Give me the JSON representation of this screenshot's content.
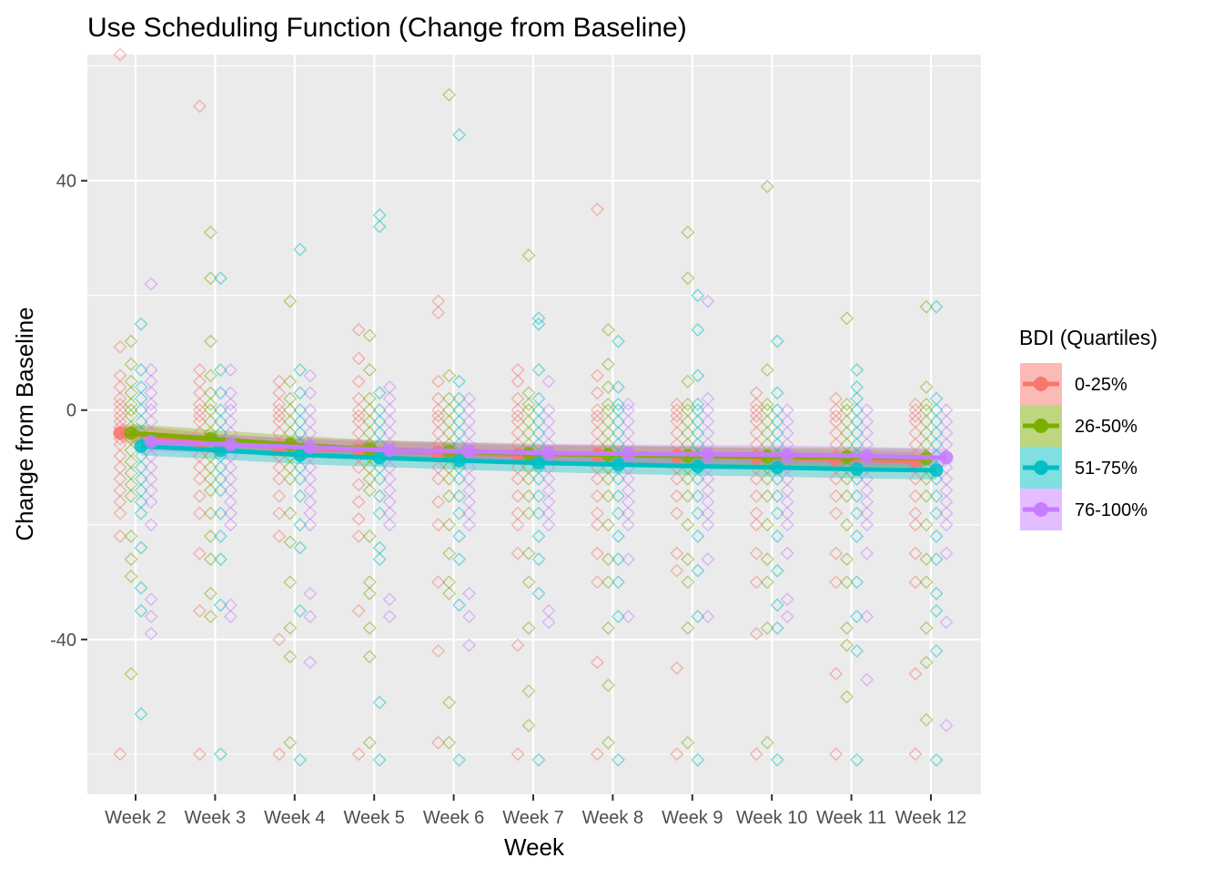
{
  "chart_data": {
    "type": "scatter",
    "title": "Use Scheduling Function (Change from Baseline)",
    "xlabel": "Week",
    "ylabel": "Change from Baseline",
    "categories": [
      "Week 2",
      "Week 3",
      "Week 4",
      "Week 5",
      "Week 6",
      "Week 7",
      "Week 8",
      "Week 9",
      "Week 10",
      "Week 11",
      "Week 12"
    ],
    "ylim": [
      -67,
      62
    ],
    "y_ticks": [
      -40,
      0,
      40
    ],
    "grid": true,
    "legend": {
      "title": "BDI (Quartiles)",
      "placement": "right",
      "entries": [
        "0-25%",
        "26-50%",
        "51-75%",
        "76-100%"
      ]
    },
    "series": [
      {
        "name": "0-25%",
        "color": "#F8766D",
        "trend": [
          -4.0,
          -5.5,
          -6.5,
          -7.0,
          -7.4,
          -7.8,
          -7.8,
          -8.0,
          -8.3,
          -8.6,
          -8.9
        ],
        "points": [
          [
            62,
            11,
            6,
            4,
            2,
            1,
            0,
            -1,
            -2,
            -3,
            -4,
            -5,
            -6,
            -8,
            -10,
            -12,
            -14,
            -16,
            -18,
            -22,
            -60
          ],
          [
            53,
            7,
            5,
            3,
            1,
            0,
            -1,
            -2,
            -4,
            -6,
            -8,
            -10,
            -12,
            -15,
            -18,
            -25,
            -35,
            -60
          ],
          [
            5,
            3,
            1,
            0,
            -1,
            -2,
            -4,
            -6,
            -8,
            -10,
            -12,
            -15,
            -18,
            -22,
            -40,
            -60
          ],
          [
            14,
            9,
            5,
            2,
            0,
            -1,
            -2,
            -4,
            -6,
            -8,
            -10,
            -13,
            -16,
            -19,
            -22,
            -35,
            -60
          ],
          [
            19,
            17,
            5,
            2,
            0,
            -1,
            -2,
            -4,
            -6,
            -8,
            -10,
            -12,
            -16,
            -20,
            -30,
            -42,
            -58
          ],
          [
            7,
            5,
            2,
            0,
            -1,
            -2,
            -4,
            -6,
            -8,
            -10,
            -12,
            -15,
            -18,
            -20,
            -25,
            -41,
            -60
          ],
          [
            35,
            6,
            3,
            0,
            -1,
            -2,
            -4,
            -6,
            -8,
            -10,
            -12,
            -15,
            -18,
            -20,
            -25,
            -30,
            -44,
            -60
          ],
          [
            1,
            0,
            -1,
            -2,
            -4,
            -6,
            -8,
            -10,
            -12,
            -15,
            -18,
            -25,
            -28,
            -45,
            -60
          ],
          [
            3,
            1,
            0,
            -1,
            -2,
            -4,
            -6,
            -8,
            -10,
            -12,
            -15,
            -18,
            -20,
            -25,
            -30,
            -39,
            -60
          ],
          [
            2,
            0,
            -1,
            -2,
            -4,
            -6,
            -8,
            -10,
            -12,
            -15,
            -18,
            -25,
            -30,
            -46,
            -60
          ],
          [
            1,
            0,
            -1,
            -2,
            -4,
            -6,
            -8,
            -10,
            -12,
            -15,
            -18,
            -20,
            -25,
            -30,
            -46,
            -60
          ]
        ]
      },
      {
        "name": "26-50%",
        "color": "#7CAE00",
        "trend": [
          -4.0,
          -5.0,
          -6.0,
          -6.8,
          -7.2,
          -7.6,
          -7.8,
          -8.0,
          -8.1,
          -8.2,
          -8.4
        ],
        "points": [
          [
            12,
            8,
            5,
            3,
            1,
            0,
            -1,
            -3,
            -5,
            -7,
            -9,
            -11,
            -13,
            -15,
            -22,
            -26,
            -29,
            -46
          ],
          [
            31,
            23,
            12,
            6,
            3,
            1,
            0,
            -2,
            -4,
            -6,
            -8,
            -10,
            -12,
            -14,
            -18,
            -22,
            -26,
            -32,
            -36
          ],
          [
            19,
            5,
            2,
            0,
            -2,
            -4,
            -6,
            -8,
            -10,
            -12,
            -18,
            -23,
            -30,
            -38,
            -43,
            -58
          ],
          [
            13,
            7,
            2,
            0,
            -2,
            -4,
            -6,
            -8,
            -10,
            -12,
            -14,
            -22,
            -30,
            -32,
            -38,
            -43,
            -58
          ],
          [
            55,
            6,
            2,
            0,
            -2,
            -4,
            -6,
            -8,
            -10,
            -12,
            -15,
            -20,
            -25,
            -30,
            -32,
            -51,
            -58
          ],
          [
            27,
            3,
            1,
            0,
            -2,
            -4,
            -6,
            -8,
            -10,
            -12,
            -15,
            -18,
            -25,
            -30,
            -38,
            -49,
            -55
          ],
          [
            14,
            8,
            4,
            1,
            0,
            -2,
            -4,
            -6,
            -8,
            -10,
            -12,
            -15,
            -20,
            -26,
            -30,
            -38,
            -48,
            -58
          ],
          [
            31,
            23,
            5,
            1,
            0,
            -2,
            -4,
            -6,
            -8,
            -10,
            -12,
            -15,
            -20,
            -26,
            -30,
            -38,
            -58
          ],
          [
            39,
            7,
            1,
            0,
            -2,
            -4,
            -6,
            -8,
            -10,
            -12,
            -15,
            -20,
            -26,
            -30,
            -38,
            -58
          ],
          [
            16,
            1,
            0,
            -2,
            -4,
            -6,
            -8,
            -10,
            -12,
            -15,
            -20,
            -26,
            -30,
            -38,
            -41,
            -50
          ],
          [
            18,
            4,
            1,
            0,
            -2,
            -4,
            -6,
            -8,
            -10,
            -12,
            -15,
            -20,
            -26,
            -30,
            -38,
            -44,
            -54
          ]
        ]
      },
      {
        "name": "51-75%",
        "color": "#00BFC4",
        "trend": [
          -6.3,
          -7.0,
          -7.8,
          -8.3,
          -8.8,
          -9.2,
          -9.5,
          -9.8,
          -10.0,
          -10.3,
          -10.5
        ],
        "points": [
          [
            15,
            7,
            4,
            2,
            0,
            -2,
            -4,
            -6,
            -8,
            -10,
            -12,
            -14,
            -16,
            -18,
            -24,
            -31,
            -35,
            -53
          ],
          [
            23,
            7,
            3,
            0,
            -2,
            -4,
            -6,
            -8,
            -10,
            -12,
            -14,
            -18,
            -22,
            -26,
            -34,
            -60
          ],
          [
            28,
            7,
            3,
            0,
            -2,
            -4,
            -6,
            -8,
            -10,
            -12,
            -15,
            -20,
            -24,
            -35,
            -61
          ],
          [
            34,
            32,
            3,
            0,
            -2,
            -4,
            -6,
            -8,
            -10,
            -12,
            -15,
            -18,
            -24,
            -26,
            -51,
            -61
          ],
          [
            48,
            5,
            2,
            0,
            -2,
            -4,
            -6,
            -8,
            -10,
            -12,
            -15,
            -18,
            -22,
            -26,
            -34,
            -61
          ],
          [
            16,
            15,
            7,
            2,
            0,
            -2,
            -4,
            -6,
            -8,
            -10,
            -12,
            -15,
            -18,
            -22,
            -26,
            -32,
            -61
          ],
          [
            12,
            4,
            1,
            0,
            -2,
            -4,
            -6,
            -8,
            -10,
            -12,
            -15,
            -18,
            -22,
            -26,
            -30,
            -36,
            -61
          ],
          [
            20,
            14,
            6,
            1,
            0,
            -2,
            -4,
            -6,
            -8,
            -10,
            -12,
            -15,
            -18,
            -22,
            -28,
            -36,
            -61
          ],
          [
            12,
            3,
            0,
            -2,
            -4,
            -6,
            -8,
            -10,
            -12,
            -15,
            -18,
            -22,
            -28,
            -34,
            -38,
            -61
          ],
          [
            7,
            4,
            2,
            0,
            -2,
            -4,
            -6,
            -8,
            -10,
            -12,
            -15,
            -18,
            -22,
            -30,
            -36,
            -42,
            -61
          ],
          [
            18,
            2,
            0,
            -2,
            -4,
            -6,
            -8,
            -10,
            -12,
            -15,
            -18,
            -22,
            -26,
            -32,
            -35,
            -42,
            -61
          ]
        ]
      },
      {
        "name": "76-100%",
        "color": "#C77CFF",
        "trend": [
          -5.5,
          -6.0,
          -6.5,
          -7.0,
          -7.2,
          -7.5,
          -7.6,
          -7.7,
          -7.8,
          -8.0,
          -8.3
        ],
        "points": [
          [
            22,
            7,
            5,
            3,
            1,
            0,
            -2,
            -4,
            -6,
            -8,
            -10,
            -12,
            -14,
            -16,
            -20,
            -33,
            -36,
            -39
          ],
          [
            7,
            3,
            1,
            0,
            -2,
            -4,
            -6,
            -8,
            -10,
            -12,
            -14,
            -16,
            -18,
            -20,
            -34,
            -36
          ],
          [
            6,
            3,
            0,
            -2,
            -4,
            -6,
            -8,
            -10,
            -12,
            -14,
            -16,
            -18,
            -20,
            -32,
            -36,
            -44
          ],
          [
            4,
            2,
            0,
            -2,
            -4,
            -6,
            -8,
            -10,
            -12,
            -14,
            -16,
            -18,
            -20,
            -33,
            -36
          ],
          [
            2,
            0,
            -2,
            -4,
            -6,
            -8,
            -10,
            -12,
            -14,
            -16,
            -18,
            -20,
            -32,
            -36,
            -41
          ],
          [
            5,
            0,
            -2,
            -4,
            -6,
            -8,
            -10,
            -12,
            -14,
            -16,
            -18,
            -20,
            -35,
            -37
          ],
          [
            1,
            0,
            -2,
            -4,
            -6,
            -8,
            -10,
            -12,
            -14,
            -16,
            -18,
            -20,
            -26,
            -36
          ],
          [
            19,
            2,
            0,
            -2,
            -4,
            -6,
            -8,
            -10,
            -12,
            -14,
            -16,
            -18,
            -20,
            -26,
            -36
          ],
          [
            0,
            -2,
            -4,
            -6,
            -8,
            -10,
            -12,
            -14,
            -16,
            -18,
            -20,
            -25,
            -33,
            -36
          ],
          [
            0,
            -2,
            -4,
            -6,
            -8,
            -10,
            -12,
            -14,
            -16,
            -18,
            -20,
            -25,
            -36,
            -47
          ],
          [
            0,
            -2,
            -4,
            -6,
            -8,
            -10,
            -12,
            -14,
            -16,
            -18,
            -20,
            -25,
            -37,
            -55
          ]
        ]
      }
    ]
  }
}
